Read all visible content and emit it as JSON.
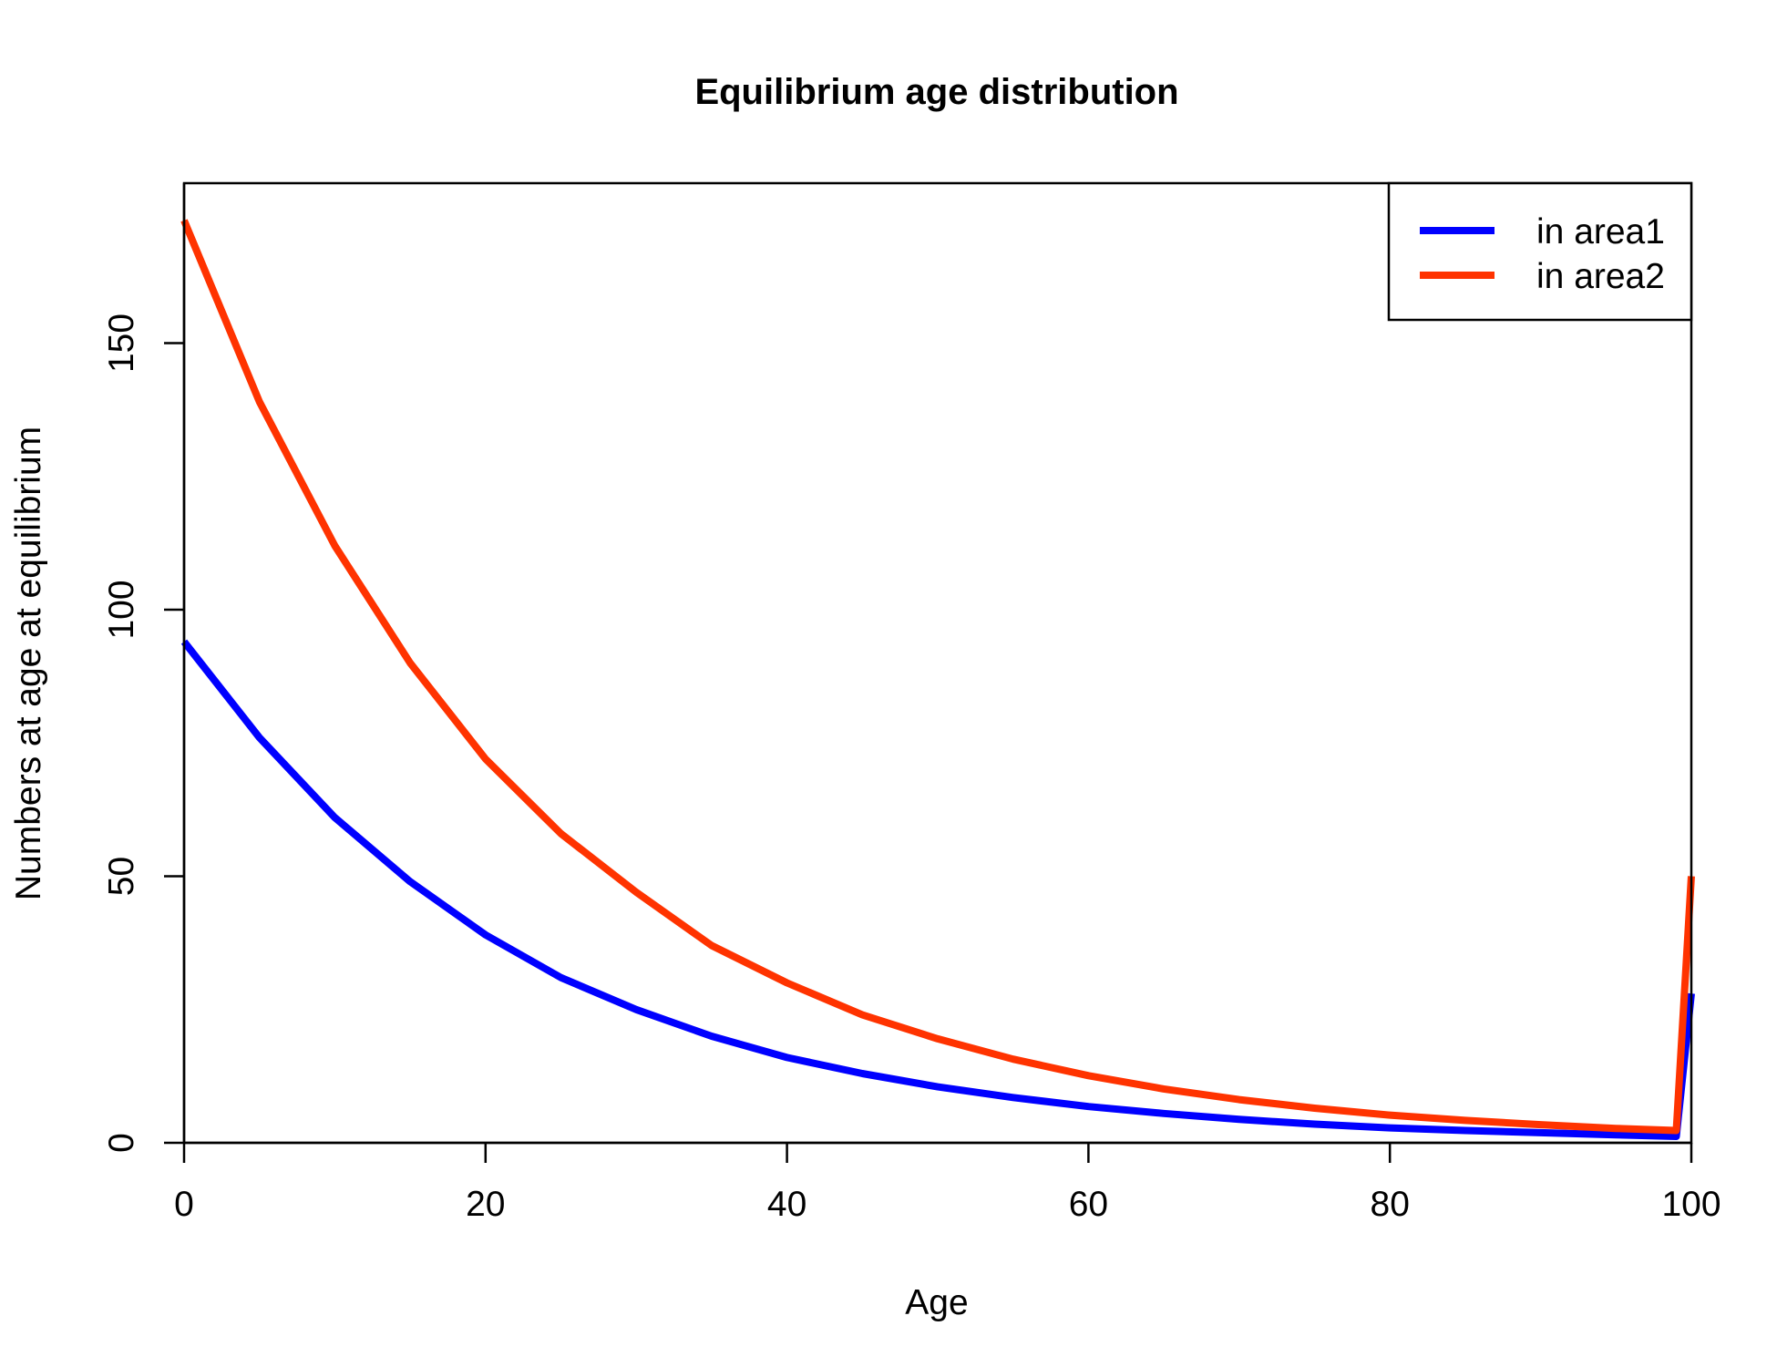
{
  "chart_data": {
    "type": "line",
    "title": "Equilibrium age distribution",
    "xlabel": "Age",
    "ylabel": "Numbers at age at equilibrium",
    "xlim": [
      0,
      100
    ],
    "ylim": [
      0,
      180
    ],
    "x_ticks": [
      0,
      20,
      40,
      60,
      80,
      100
    ],
    "y_ticks": [
      0,
      50,
      100,
      150
    ],
    "grid": false,
    "legend_position": "top-right",
    "x": [
      0,
      5,
      10,
      15,
      20,
      25,
      30,
      35,
      40,
      45,
      50,
      55,
      60,
      65,
      70,
      75,
      80,
      85,
      90,
      95,
      99,
      100
    ],
    "series": [
      {
        "name": "in area1",
        "color": "#0000ff",
        "values": [
          94,
          76,
          61,
          49,
          39,
          31,
          25,
          20,
          16,
          13,
          10.5,
          8.5,
          6.8,
          5.5,
          4.4,
          3.5,
          2.8,
          2.3,
          1.9,
          1.5,
          1.2,
          28
        ]
      },
      {
        "name": "in area2",
        "color": "#ff3300",
        "values": [
          173,
          139,
          112,
          90,
          72,
          58,
          47,
          37,
          30,
          24,
          19.5,
          15.7,
          12.6,
          10.1,
          8.1,
          6.5,
          5.2,
          4.2,
          3.4,
          2.7,
          2.3,
          50
        ]
      }
    ]
  }
}
